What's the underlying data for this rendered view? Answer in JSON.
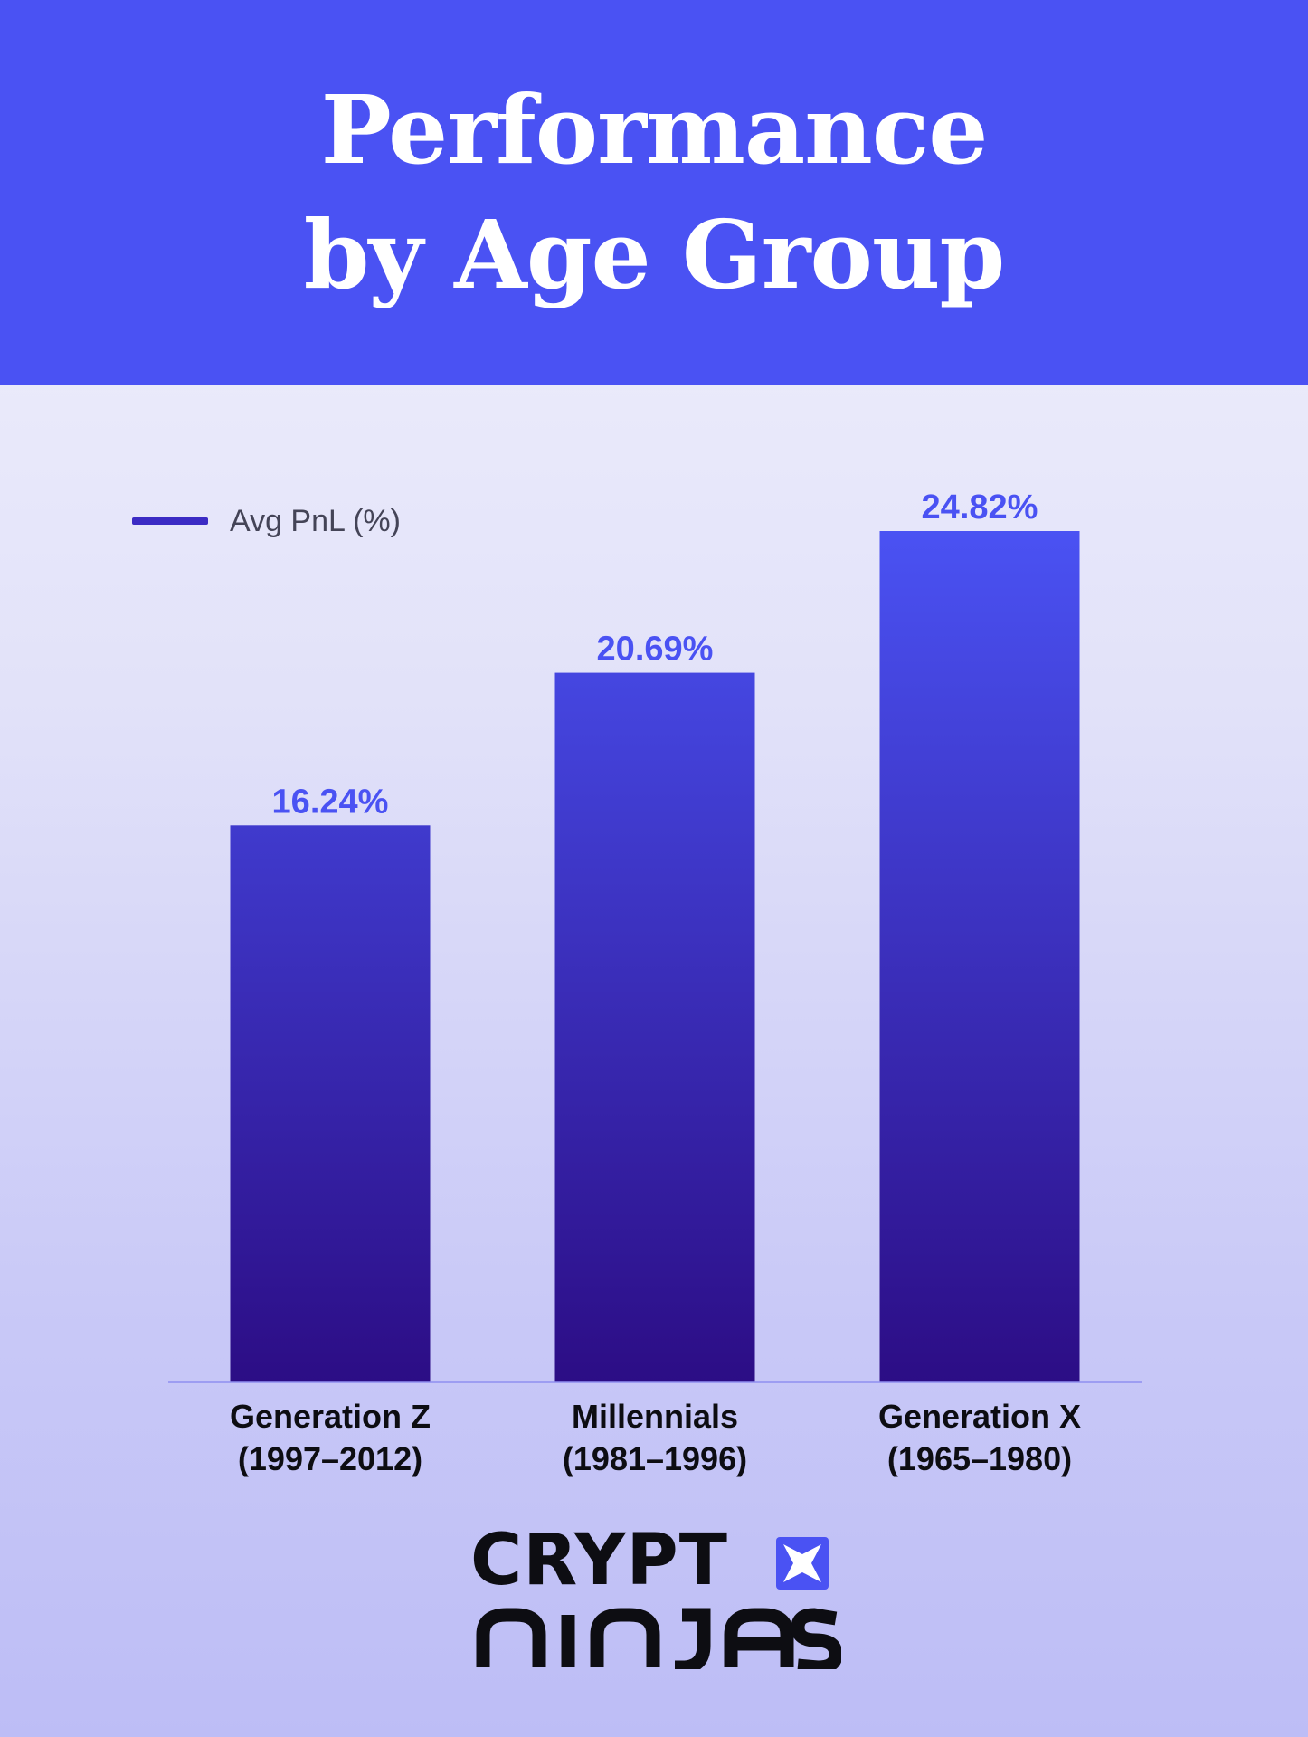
{
  "header": {
    "title_line1": "Performance",
    "title_line2": "by Age Group"
  },
  "legend": {
    "label": "Avg PnL (%)"
  },
  "colors": {
    "header_bg": "#4a52f3",
    "bar_top": "#4a52f3",
    "bar_bottom": "#2c0d85",
    "value_label": "#4a52f3",
    "axis": "#8f8ff0"
  },
  "chart_data": {
    "type": "bar",
    "title": "Performance by Age Group",
    "categories": [
      "Generation Z (1997–2012)",
      "Millennials (1981–1996)",
      "Generation X (1965–1980)"
    ],
    "category_lines": [
      [
        "Generation Z",
        "(1997–2012)"
      ],
      [
        "Millennials",
        "(1981–1996)"
      ],
      [
        "Generation X",
        "(1965–1980)"
      ]
    ],
    "series": [
      {
        "name": "Avg PnL (%)",
        "values": [
          16.24,
          20.69,
          24.82
        ]
      }
    ],
    "value_labels": [
      "16.24%",
      "20.69%",
      "24.82%"
    ],
    "ylim": [
      0,
      24.82
    ],
    "grid": false,
    "legend_position": "top-left"
  },
  "logo": {
    "text": "CRYPTO NINJAS",
    "icon": "shuriken-icon"
  }
}
